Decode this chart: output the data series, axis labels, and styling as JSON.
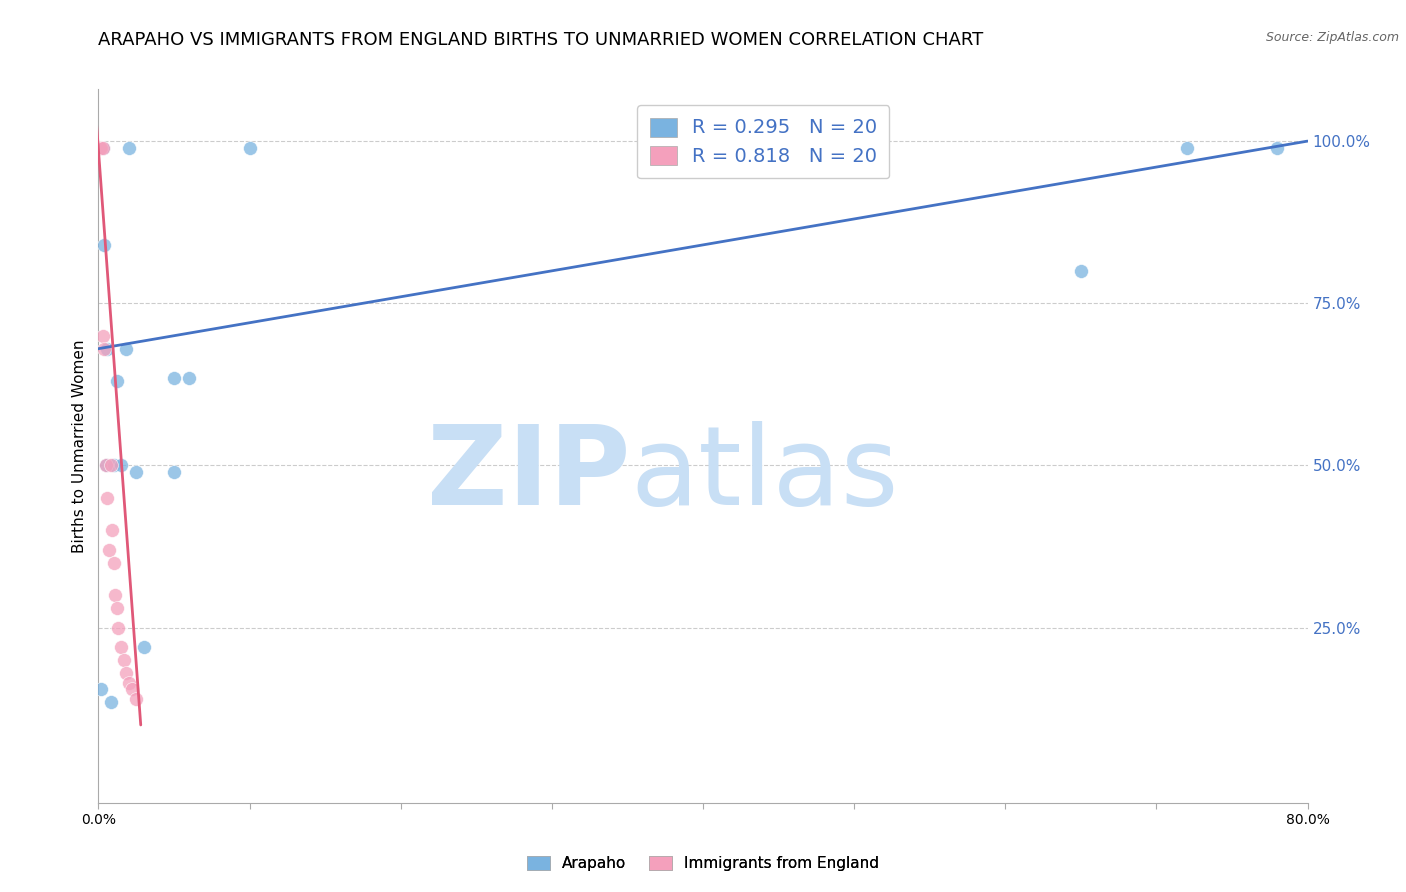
{
  "title": "ARAPAHO VS IMMIGRANTS FROM ENGLAND BIRTHS TO UNMARRIED WOMEN CORRELATION CHART",
  "source": "Source: ZipAtlas.com",
  "ylabel": "Births to Unmarried Women",
  "right_ytick_labels": [
    "25.0%",
    "50.0%",
    "75.0%",
    "100.0%"
  ],
  "right_ytick_values": [
    0.25,
    0.5,
    0.75,
    1.0
  ],
  "xlim": [
    0.0,
    0.8
  ],
  "ylim": [
    -0.02,
    1.08
  ],
  "x_tick_values": [
    0.0,
    0.1,
    0.2,
    0.3,
    0.4,
    0.5,
    0.6,
    0.7,
    0.8
  ],
  "x_tick_labels": [
    "0.0%",
    "",
    "",
    "",
    "",
    "",
    "",
    "",
    "80.0%"
  ],
  "legend_entries": [
    {
      "label": "R = 0.295   N = 20",
      "color": "#a8c8f0"
    },
    {
      "label": "R = 0.818   N = 20",
      "color": "#f0a8c0"
    }
  ],
  "legend_labels_bottom": [
    "Arapaho",
    "Immigrants from England"
  ],
  "arapaho_scatter_x": [
    0.002,
    0.003,
    0.004,
    0.005,
    0.006,
    0.008,
    0.01,
    0.012,
    0.015,
    0.018,
    0.02,
    0.025,
    0.03,
    0.05,
    0.06,
    0.1,
    0.05,
    0.65,
    0.72,
    0.78
  ],
  "arapaho_scatter_y": [
    0.155,
    0.99,
    0.84,
    0.5,
    0.68,
    0.135,
    0.5,
    0.63,
    0.5,
    0.68,
    0.99,
    0.49,
    0.22,
    0.635,
    0.635,
    0.99,
    0.49,
    0.8,
    0.99,
    0.99
  ],
  "england_scatter_x": [
    0.001,
    0.002,
    0.003,
    0.003,
    0.004,
    0.005,
    0.006,
    0.007,
    0.008,
    0.009,
    0.01,
    0.011,
    0.012,
    0.013,
    0.015,
    0.017,
    0.018,
    0.02,
    0.022,
    0.025
  ],
  "england_scatter_y": [
    0.99,
    0.99,
    0.99,
    0.7,
    0.68,
    0.5,
    0.45,
    0.37,
    0.5,
    0.4,
    0.35,
    0.3,
    0.28,
    0.25,
    0.22,
    0.2,
    0.18,
    0.165,
    0.155,
    0.14
  ],
  "blue_line_x": [
    0.0,
    0.8
  ],
  "blue_line_y": [
    0.68,
    1.0
  ],
  "pink_line_x": [
    -0.002,
    0.028
  ],
  "pink_line_y": [
    1.05,
    0.1
  ],
  "blue_color": "#7ab3e0",
  "pink_color": "#f4a0bc",
  "blue_line_color": "#4472c4",
  "pink_line_color": "#e05878",
  "watermark_zip": "ZIP",
  "watermark_atlas": "atlas",
  "watermark_color": "#c8dff5",
  "watermark_fontsize": 80,
  "grid_color": "#cccccc",
  "title_fontsize": 13,
  "axis_label_fontsize": 11,
  "tick_fontsize": 10,
  "scatter_size": 100
}
